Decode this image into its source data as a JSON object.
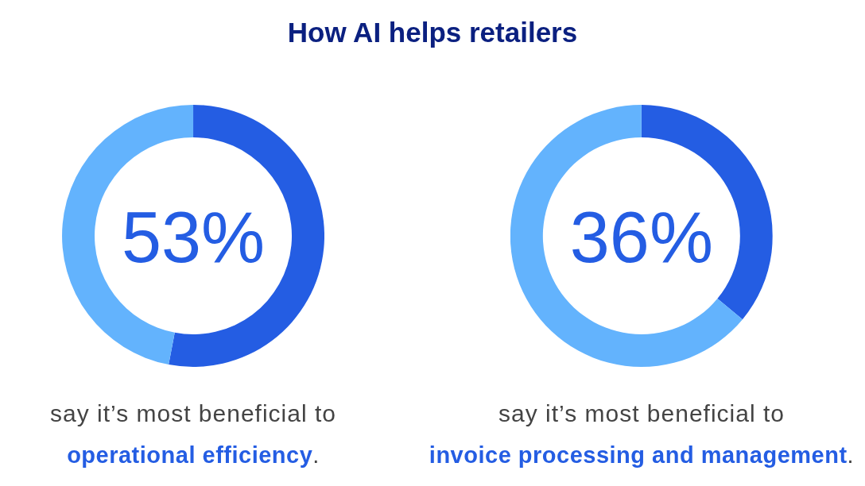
{
  "chart_data": [
    {
      "type": "donut",
      "title": "How AI helps retailers",
      "categories": [
        null,
        null
      ],
      "values": [
        53,
        47
      ],
      "colors": [
        "#245de3",
        "#63b3fd"
      ],
      "annotations": [
        "53%",
        "say it’s most beneficial to",
        "operational efficiency",
        "."
      ]
    },
    {
      "type": "donut",
      "categories": [
        null,
        null
      ],
      "values": [
        36,
        64
      ],
      "colors": [
        "#245de3",
        "#63b3fd"
      ],
      "annotations": [
        "36%",
        "say it’s most beneficial to",
        "invoice processing and management",
        "."
      ]
    }
  ]
}
